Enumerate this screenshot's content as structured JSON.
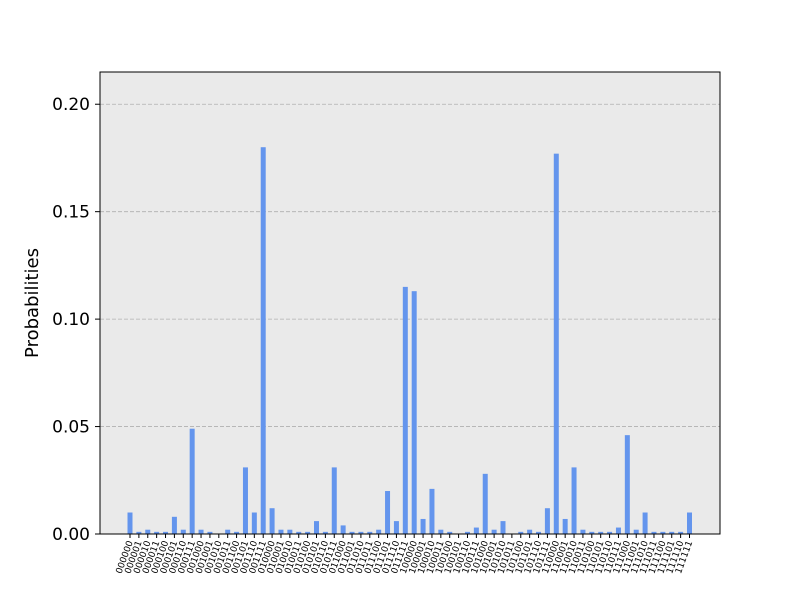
{
  "chart_data": {
    "type": "bar",
    "title": "",
    "xlabel": "",
    "ylabel": "Probabilities",
    "ylim": [
      0,
      0.215
    ],
    "yticks": [
      0.0,
      0.05,
      0.1,
      0.15,
      0.2
    ],
    "ytick_labels": [
      "0.00",
      "0.05",
      "0.10",
      "0.15",
      "0.20"
    ],
    "grid": "y-dashed",
    "bar_color": "#6495ed",
    "background_color": "#eaeaea",
    "categories": [
      "000000",
      "000001",
      "000010",
      "000011",
      "000100",
      "000101",
      "000110",
      "000111",
      "001000",
      "001001",
      "001010",
      "001011",
      "001100",
      "001101",
      "001110",
      "001111",
      "010000",
      "010001",
      "010010",
      "010011",
      "010100",
      "010101",
      "010110",
      "010111",
      "011000",
      "011001",
      "011010",
      "011011",
      "011100",
      "011101",
      "011110",
      "011111",
      "100000",
      "100001",
      "100010",
      "100011",
      "100100",
      "100101",
      "100110",
      "100111",
      "101000",
      "101001",
      "101010",
      "101011",
      "101100",
      "101101",
      "101110",
      "101111",
      "110000",
      "110001",
      "110010",
      "110011",
      "110100",
      "110101",
      "110110",
      "110111",
      "111000",
      "111001",
      "111010",
      "111011",
      "111100",
      "111101",
      "111110",
      "111111"
    ],
    "values": [
      0.01,
      0.001,
      0.002,
      0.001,
      0.001,
      0.008,
      0.002,
      0.049,
      0.002,
      0.001,
      0.0,
      0.002,
      0.001,
      0.031,
      0.01,
      0.18,
      0.012,
      0.002,
      0.002,
      0.001,
      0.001,
      0.006,
      0.001,
      0.031,
      0.004,
      0.001,
      0.001,
      0.001,
      0.002,
      0.02,
      0.006,
      0.115,
      0.113,
      0.007,
      0.021,
      0.002,
      0.001,
      0.0,
      0.001,
      0.003,
      0.028,
      0.002,
      0.006,
      0.0,
      0.001,
      0.002,
      0.001,
      0.012,
      0.177,
      0.007,
      0.031,
      0.002,
      0.001,
      0.001,
      0.001,
      0.003,
      0.046,
      0.002,
      0.01,
      0.001,
      0.001,
      0.001,
      0.001,
      0.01
    ]
  }
}
